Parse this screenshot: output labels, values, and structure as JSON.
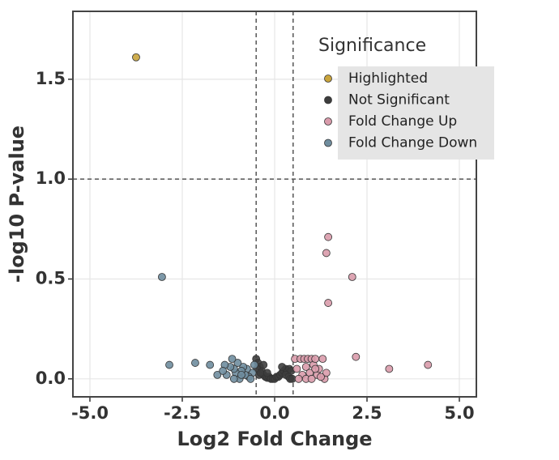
{
  "chart_data": {
    "type": "scatter",
    "x_label": "Log2 Fold Change",
    "y_label": "-log10 P-value",
    "xlim": [
      -5.46,
      5.46
    ],
    "ylim": [
      -0.09,
      1.84
    ],
    "xticks": [
      {
        "value": -5,
        "label": "-5.0"
      },
      {
        "value": -2.5,
        "label": "-2.5"
      },
      {
        "value": 0,
        "label": "0.0"
      },
      {
        "value": 2.5,
        "label": "2.5"
      },
      {
        "value": 5,
        "label": "5.0"
      }
    ],
    "yticks": [
      {
        "value": 0,
        "label": "0.0"
      },
      {
        "value": 0.5,
        "label": "0.5"
      },
      {
        "value": 1,
        "label": "1.0"
      },
      {
        "value": 1.5,
        "label": "1.5"
      }
    ],
    "grid": true,
    "vlines": [
      -0.5,
      0.5
    ],
    "hlines": [
      1
    ],
    "legend_title": "Significance",
    "legend_position": "top-right",
    "series": [
      {
        "name": "Highlighted",
        "color": "#c9a43c",
        "x": [
          -3.75
        ],
        "values": [
          1.61
        ]
      },
      {
        "name": "Not Significant",
        "color": "#3d3d3d",
        "x": [
          -0.5,
          -0.45,
          -0.4,
          -0.35,
          -0.3,
          -0.25,
          -0.2,
          -0.15,
          -0.1,
          -0.05,
          0,
          0.05,
          0.1,
          0.15,
          0.2,
          0.25,
          0.3,
          0.35,
          0.4,
          0.45,
          -0.48,
          -0.42,
          -0.38,
          -0.3,
          -0.2,
          0.2,
          0.3,
          0.38,
          0.42,
          0.48
        ],
        "values": [
          0.1,
          0.08,
          0.06,
          0.04,
          0.02,
          0.01,
          0.005,
          0.01,
          0,
          0,
          0,
          0.01,
          0.01,
          0.02,
          0.03,
          0.04,
          0.05,
          0.04,
          0.05,
          0.04,
          0.05,
          0.02,
          0.03,
          0.07,
          0.03,
          0.06,
          0.02,
          0.01,
          0,
          0
        ]
      },
      {
        "name": "Fold Change Up",
        "color": "#d99bab",
        "x": [
          1.45,
          1.4,
          2.1,
          1.45,
          2.2,
          3.1,
          4.15,
          0.55,
          0.6,
          0.7,
          0.75,
          0.8,
          0.85,
          0.9,
          0.95,
          1,
          1.05,
          1.1,
          1.15,
          1.2,
          1.3,
          1.35,
          1.4,
          0.65,
          0.85,
          1,
          1.1,
          1.25
        ],
        "values": [
          0.71,
          0.63,
          0.51,
          0.38,
          0.11,
          0.05,
          0.07,
          0.1,
          0.05,
          0.1,
          0.02,
          0.1,
          0.06,
          0.1,
          0.03,
          0.1,
          0.07,
          0.1,
          0.02,
          0.05,
          0.1,
          0,
          0.03,
          0,
          0,
          0,
          0.05,
          0.01
        ]
      },
      {
        "name": "Fold Change Down",
        "color": "#6f8d9e",
        "x": [
          -3.05,
          -2.85,
          -2.15,
          -1.75,
          -1.55,
          -0.55,
          -0.6,
          -0.7,
          -0.75,
          -0.8,
          -0.85,
          -0.9,
          -0.95,
          -1,
          -1.05,
          -1.1,
          -1.15,
          -1.2,
          -1.3,
          -1.35,
          -1.4,
          -0.65,
          -0.9,
          -1.1
        ],
        "values": [
          0.51,
          0.07,
          0.08,
          0.07,
          0.02,
          0.07,
          0.03,
          0.01,
          0.05,
          0.02,
          0.06,
          0.04,
          0,
          0.08,
          0.03,
          0.05,
          0.1,
          0.06,
          0.02,
          0.07,
          0.04,
          0,
          0.02,
          0
        ]
      }
    ]
  }
}
